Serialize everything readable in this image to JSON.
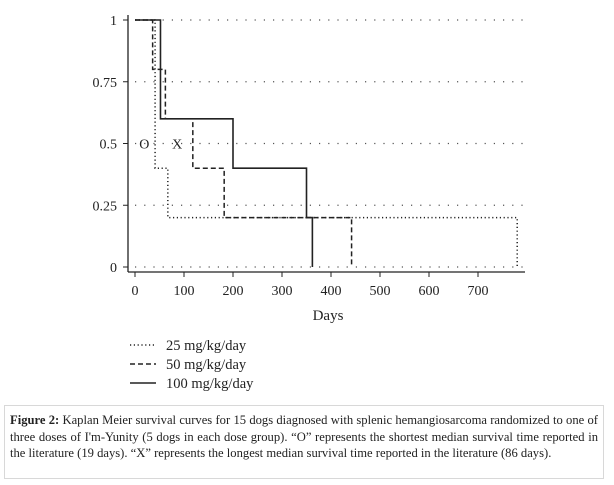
{
  "chart_data": {
    "type": "line",
    "subtype": "kaplan-meier-step",
    "xlabel": "Days",
    "ylabel": "",
    "xlim": [
      0,
      790
    ],
    "ylim": [
      0,
      1
    ],
    "xticks": [
      0,
      100,
      200,
      300,
      400,
      500,
      600,
      700
    ],
    "yticks": [
      0,
      0.25,
      0.5,
      0.75,
      1
    ],
    "ytick_labels": [
      "0",
      "0.25",
      "0.5",
      "0.75",
      "1"
    ],
    "grid": "horizontal-dotted",
    "legend_position": "bottom-left",
    "series": [
      {
        "name": "25 mg/kg/day",
        "style": "dotted",
        "x": [
          0,
          41,
          67,
          780
        ],
        "y": [
          1,
          0.4,
          0.2,
          0
        ]
      },
      {
        "name": "50 mg/kg/day",
        "style": "dashed",
        "x": [
          0,
          36,
          62,
          118,
          182,
          442
        ],
        "y": [
          1,
          0.8,
          0.6,
          0.4,
          0.2,
          0
        ]
      },
      {
        "name": "100 mg/kg/day",
        "style": "solid",
        "x": [
          0,
          52,
          200,
          350,
          362
        ],
        "y": [
          1,
          0.6,
          0.4,
          0.2,
          0
        ]
      }
    ],
    "annotations": [
      {
        "text": "O",
        "x": 19,
        "y": 0.5
      },
      {
        "text": "X",
        "x": 86,
        "y": 0.5
      }
    ]
  },
  "caption": {
    "label": "Figure 2:",
    "text": " Kaplan Meier survival curves for 15 dogs diagnosed with splenic hemangiosarcoma randomized to one of three doses of I'm-Yunity (5 dogs in each dose group). “O” represents the shortest median survival time reported in the literature (19 days). “X” represents the longest median survival time reported in the literature (86 days)."
  },
  "colors": {
    "ink": "#222222",
    "grid": "#555555"
  }
}
